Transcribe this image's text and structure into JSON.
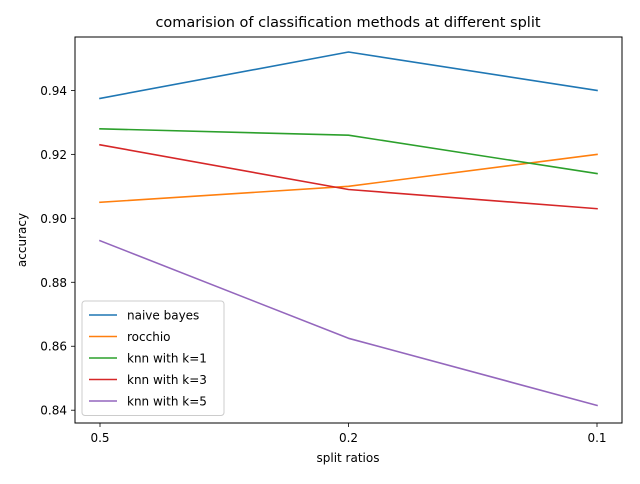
{
  "chart_data": {
    "type": "line",
    "title": "comarision of classification methods at different split",
    "xlabel": "split ratios",
    "ylabel": "accuracy",
    "categories": [
      "0.5",
      "0.2",
      "0.1"
    ],
    "ylim": [
      0.836,
      0.9567
    ],
    "yticks": [
      "0.84",
      "0.86",
      "0.88",
      "0.90",
      "0.92",
      "0.94"
    ],
    "grid": false,
    "legend_position": "lower-left",
    "series": [
      {
        "name": "naive bayes",
        "color": "#1f77b4",
        "values": [
          0.9375,
          0.952,
          0.94
        ]
      },
      {
        "name": "rocchio",
        "color": "#ff7f0e",
        "values": [
          0.905,
          0.91,
          0.92
        ]
      },
      {
        "name": "knn with k=1",
        "color": "#2ca02c",
        "values": [
          0.928,
          0.926,
          0.914
        ]
      },
      {
        "name": "knn with k=3",
        "color": "#d62728",
        "values": [
          0.923,
          0.909,
          0.903
        ]
      },
      {
        "name": "knn with k=5",
        "color": "#9467bd",
        "values": [
          0.893,
          0.8625,
          0.8415
        ]
      }
    ]
  }
}
